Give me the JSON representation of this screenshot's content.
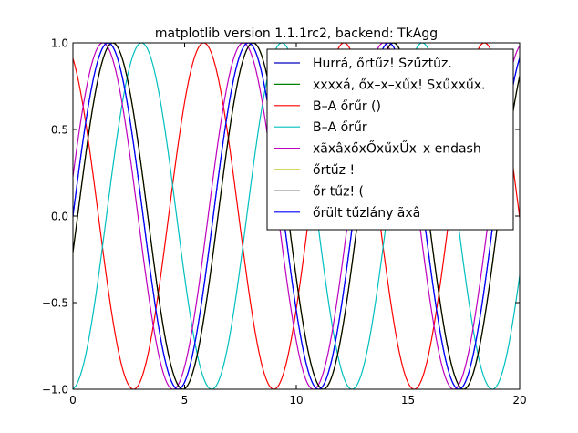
{
  "chart_data": {
    "type": "line",
    "title": "matplotlib version 1.1.1rc2, backend: TkAgg",
    "xlabel": "",
    "ylabel": "",
    "xlim": [
      0,
      20
    ],
    "ylim": [
      -1.0,
      1.0
    ],
    "xticks": [
      0,
      5,
      10,
      15,
      20
    ],
    "xtick_labels": [
      "0",
      "5",
      "10",
      "15",
      "20"
    ],
    "yticks": [
      -1.0,
      -0.5,
      0.0,
      0.5,
      1.0
    ],
    "ytick_labels": [
      "−1.0",
      "−0.5",
      "0.0",
      "0.5",
      "1.0"
    ],
    "grid": false,
    "legend_position": "upper-right",
    "series": [
      {
        "name": "Hurrá, őrtűz! Szűztűz.",
        "color": "#0000bf",
        "function": "sin(x)"
      },
      {
        "name": "xxxxá, őx–x–xűx! Sxűxxűx.",
        "color": "#008000",
        "function": "sin(x - 0.21)"
      },
      {
        "name": "B–A őrűr ()",
        "color": "#ff0000",
        "function": "sin(x + 2.0)"
      },
      {
        "name": "B–A őrűr",
        "color": "#00bfbf",
        "function": "sin(x - 1.5)"
      },
      {
        "name": "xãxâxőxŐxűxŰx–x endash",
        "color": "#bf00bf",
        "function": "sin(x + 0.23)"
      },
      {
        "name": "őrtűz !",
        "color": "#bfbf00",
        "function": "sin(x - 0.21)"
      },
      {
        "name": "őr tűz! (",
        "color": "#000000",
        "function": "sin(x - 0.21)"
      },
      {
        "name": "őrült tűzlány ãxâ",
        "color": "#0000ff",
        "function": "sin(x)"
      }
    ]
  }
}
